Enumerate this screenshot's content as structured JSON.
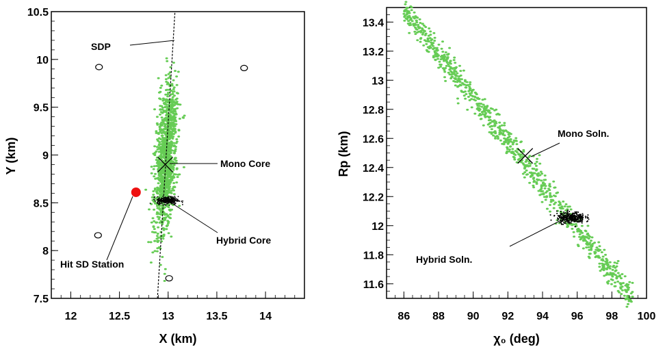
{
  "chart_data": [
    {
      "type": "scatter",
      "xlabel": "X (km)",
      "ylabel": "Y (km)",
      "xlim": [
        11.8,
        14.4
      ],
      "ylim": [
        7.5,
        10.5
      ],
      "xticks": [
        "12",
        "12.5",
        "13",
        "13.5",
        "14"
      ],
      "yticks": [
        "7.5",
        "8",
        "8.5",
        "9",
        "9.5",
        "10",
        "10.5"
      ],
      "colors": {
        "mono": "#66cc55",
        "hybrid": "#000000",
        "hit_station": "#ee1111"
      },
      "mono_cloud": {
        "center": [
          12.97,
          8.95
        ],
        "x_spread": 0.05,
        "y_range": [
          7.6,
          10.4
        ],
        "n_points": 1200
      },
      "hybrid_cloud": {
        "center": [
          12.99,
          8.53
        ],
        "x_spread": 0.12,
        "y_spread": 0.02,
        "n_points": 300
      },
      "sdp_line": {
        "x": [
          12.89,
          13.07
        ],
        "y": [
          7.5,
          10.5
        ]
      },
      "mono_core": {
        "x": 12.97,
        "y": 8.9
      },
      "hit_station": {
        "x": 12.67,
        "y": 8.61
      },
      "sd_stations": [
        {
          "x": 12.29,
          "y": 9.92
        },
        {
          "x": 13.78,
          "y": 9.91
        },
        {
          "x": 12.28,
          "y": 8.16
        },
        {
          "x": 13.01,
          "y": 7.71
        }
      ],
      "annotations": {
        "sdp": "SDP",
        "mono_core": "Mono Core",
        "hybrid_core": "Hybrid Core",
        "hit_station": "Hit SD Station"
      }
    },
    {
      "type": "scatter",
      "xlabel": "χ₀ (deg)",
      "ylabel": "Rp (km)",
      "xlim": [
        85,
        100
      ],
      "ylim": [
        11.5,
        13.5
      ],
      "xticks": [
        "86",
        "88",
        "90",
        "92",
        "94",
        "96",
        "98",
        "100"
      ],
      "yticks": [
        "11.6",
        "11.8",
        "12",
        "12.2",
        "12.4",
        "12.6",
        "12.8",
        "13",
        "13.2",
        "13.4"
      ],
      "colors": {
        "mono": "#66cc55",
        "hybrid": "#000000"
      },
      "mono_band": {
        "x_range": [
          86.0,
          99.2
        ],
        "y_at_start": 13.48,
        "y_at_end": 11.5,
        "width": 0.05,
        "n_points": 900
      },
      "hybrid_cloud": {
        "center": [
          95.6,
          12.06
        ],
        "x_spread": 0.4,
        "y_spread": 0.02,
        "n_points": 300
      },
      "mono_soln": {
        "x": 93.0,
        "y": 12.48
      },
      "annotations": {
        "mono_soln": "Mono Soln.",
        "hybrid_soln": "Hybrid Soln."
      }
    }
  ]
}
